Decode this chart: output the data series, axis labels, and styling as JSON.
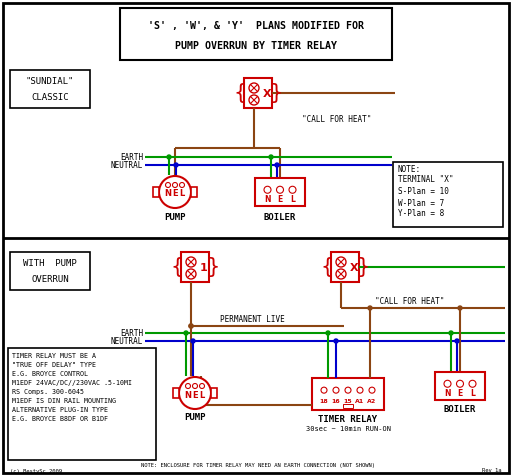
{
  "title_line1": "'S' , 'W', & 'Y'  PLANS MODIFIED FOR",
  "title_line2": "PUMP OVERRUN BY TIMER RELAY",
  "bg_color": "#ffffff",
  "border_color": "#000000",
  "red": "#cc0000",
  "green": "#009900",
  "blue": "#0000cc",
  "brown": "#8B4513",
  "label_timer_note": "TIMER RELAY MUST BE A\n\"TRUE OFF DELAY\" TYPE\nE.G. BROYCE CONTROL\nM1EDF 24VAC/DC//230VAC .5-10MI\nRS Comps. 300-6045\nM1EDF IS DIN RAIL MOUNTING\nALTERNATIVE PLUG-IN TYPE\nE.G. BROYCE B8DF OR B1DF",
  "bottom_note": "NOTE: ENCLOSURE FOR TIMER RELAY MAY NEED AN EARTH CONNECTION (NOT SHOWN)",
  "rev": "Rev 1a",
  "copyright": "(c) BestySc 2009"
}
